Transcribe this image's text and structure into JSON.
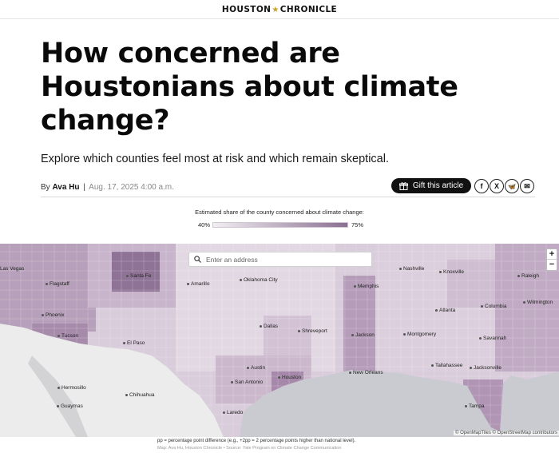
{
  "header": {
    "logo_left": "HOUSTON",
    "logo_right": "CHRONICLE"
  },
  "article": {
    "headline": "How concerned are Houstonians about climate change?",
    "dek": "Explore which counties feel most at risk and which remain skeptical.",
    "by_prefix": "By",
    "author": "Ava Hu",
    "separator": "|",
    "date": "Aug. 17, 2025 4:00 a.m."
  },
  "actions": {
    "gift_label": "Gift this article",
    "share": [
      {
        "name": "facebook",
        "glyph": "f"
      },
      {
        "name": "x",
        "glyph": "X"
      },
      {
        "name": "bluesky",
        "glyph": "🦋"
      },
      {
        "name": "email",
        "glyph": "✉"
      }
    ]
  },
  "legend": {
    "title": "Estimated share of the county concerned about climate change:",
    "min": "40%",
    "max": "75%",
    "color_low": "#f2eef3",
    "color_high": "#8a6f90"
  },
  "map": {
    "search_placeholder": "Enter an address",
    "zoom_in": "+",
    "zoom_out": "−",
    "cities": [
      {
        "name": "Las Vegas"
      },
      {
        "name": "Flagstaff"
      },
      {
        "name": "Santa Fe"
      },
      {
        "name": "Amarillo"
      },
      {
        "name": "Oklahoma City"
      },
      {
        "name": "Phoenix"
      },
      {
        "name": "Tucson"
      },
      {
        "name": "El Paso"
      },
      {
        "name": "Dallas"
      },
      {
        "name": "Shreveport"
      },
      {
        "name": "Jackson"
      },
      {
        "name": "Memphis"
      },
      {
        "name": "Nashville"
      },
      {
        "name": "Knoxville"
      },
      {
        "name": "Raleigh"
      },
      {
        "name": "Wilmington"
      },
      {
        "name": "Columbia"
      },
      {
        "name": "Atlanta"
      },
      {
        "name": "Montgomery"
      },
      {
        "name": "Savannah"
      },
      {
        "name": "Tallahassee"
      },
      {
        "name": "Jacksonville"
      },
      {
        "name": "New Orleans"
      },
      {
        "name": "Houston"
      },
      {
        "name": "Austin"
      },
      {
        "name": "San Antonio"
      },
      {
        "name": "Laredo"
      },
      {
        "name": "Hermosillo"
      },
      {
        "name": "Chihuahua"
      },
      {
        "name": "Guaymas"
      },
      {
        "name": "Tampa"
      }
    ],
    "attribution": "© OpenMapTiles © OpenStreetMap contributors"
  },
  "notes": {
    "definition": "pp = percentage point difference (e.g., +2pp = 2 percentage points higher than national level).",
    "credit": "Map: Ava Hu, Houston Chronicle • Source: Yale Program on Climate Change Communication"
  }
}
